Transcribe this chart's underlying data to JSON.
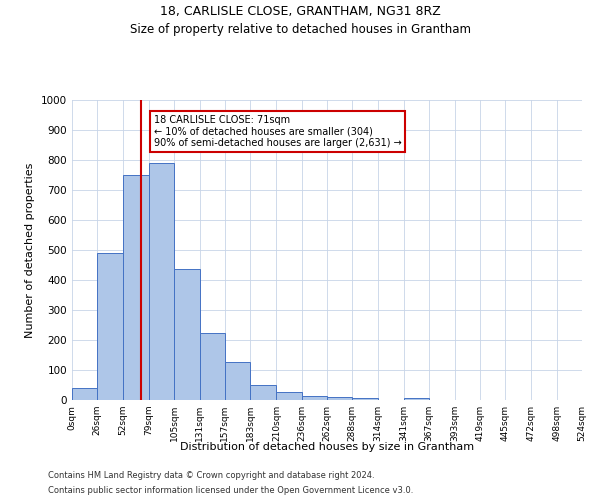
{
  "title": "18, CARLISLE CLOSE, GRANTHAM, NG31 8RZ",
  "subtitle": "Size of property relative to detached houses in Grantham",
  "xlabel": "Distribution of detached houses by size in Grantham",
  "ylabel": "Number of detached properties",
  "bar_values": [
    40,
    490,
    750,
    790,
    437,
    222,
    127,
    50,
    27,
    15,
    10,
    8,
    0,
    8,
    0,
    0,
    0,
    0,
    0,
    0
  ],
  "bin_edges": [
    0,
    26,
    52,
    79,
    105,
    131,
    157,
    183,
    210,
    236,
    262,
    288,
    314,
    341,
    367,
    393,
    419,
    445,
    472,
    498,
    524
  ],
  "tick_labels": [
    "0sqm",
    "26sqm",
    "52sqm",
    "79sqm",
    "105sqm",
    "131sqm",
    "157sqm",
    "183sqm",
    "210sqm",
    "236sqm",
    "262sqm",
    "288sqm",
    "314sqm",
    "341sqm",
    "367sqm",
    "393sqm",
    "419sqm",
    "445sqm",
    "472sqm",
    "498sqm",
    "524sqm"
  ],
  "property_size": 71,
  "vline_x": 71,
  "ylim": [
    0,
    1000
  ],
  "yticks": [
    0,
    100,
    200,
    300,
    400,
    500,
    600,
    700,
    800,
    900,
    1000
  ],
  "bar_facecolor": "#aec6e8",
  "bar_edgecolor": "#4472c4",
  "vline_color": "#cc0000",
  "annotation_line1": "18 CARLISLE CLOSE: 71sqm",
  "annotation_line2": "← 10% of detached houses are smaller (304)",
  "annotation_line3": "90% of semi-detached houses are larger (2,631) →",
  "annotation_box_color": "#cc0000",
  "footer_line1": "Contains HM Land Registry data © Crown copyright and database right 2024.",
  "footer_line2": "Contains public sector information licensed under the Open Government Licence v3.0.",
  "bg_color": "#ffffff",
  "grid_color": "#c8d4e8",
  "title_fontsize": 9,
  "subtitle_fontsize": 8.5,
  "ylabel_fontsize": 8,
  "xlabel_fontsize": 8,
  "tick_fontsize": 6.5,
  "ytick_fontsize": 7.5,
  "footer_fontsize": 6
}
